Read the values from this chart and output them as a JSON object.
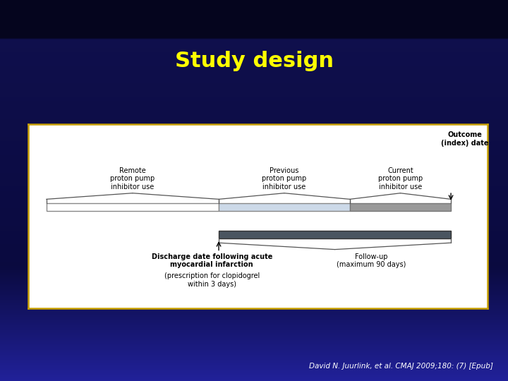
{
  "title": "Study design",
  "title_color": "#FFFF00",
  "title_fontsize": 22,
  "bg_top": "#0a0a2a",
  "bg_mid": "#1a1a6e",
  "bg_bottom": "#3333bb",
  "box_border": "#c8a000",
  "citation": "David N. Juurlink, et al. CMAJ 2009;180: (7) [Epub]",
  "citation_color": "#ffffff",
  "label_remote": "Remote\nproton pump\ninhibitor use",
  "label_previous": "Previous\nproton pump\ninhibitor use",
  "label_current": "Current\nproton pump\ninhibitor use",
  "label_outcome": "Outcome\n(index) date",
  "label_discharge_bold": "Discharge date following acute\nmyocardial infarction",
  "label_discharge_normal": "(prescription for clopidogrel\nwithin 3 days)",
  "label_followup": "Follow-up\n(maximum 90 days)"
}
